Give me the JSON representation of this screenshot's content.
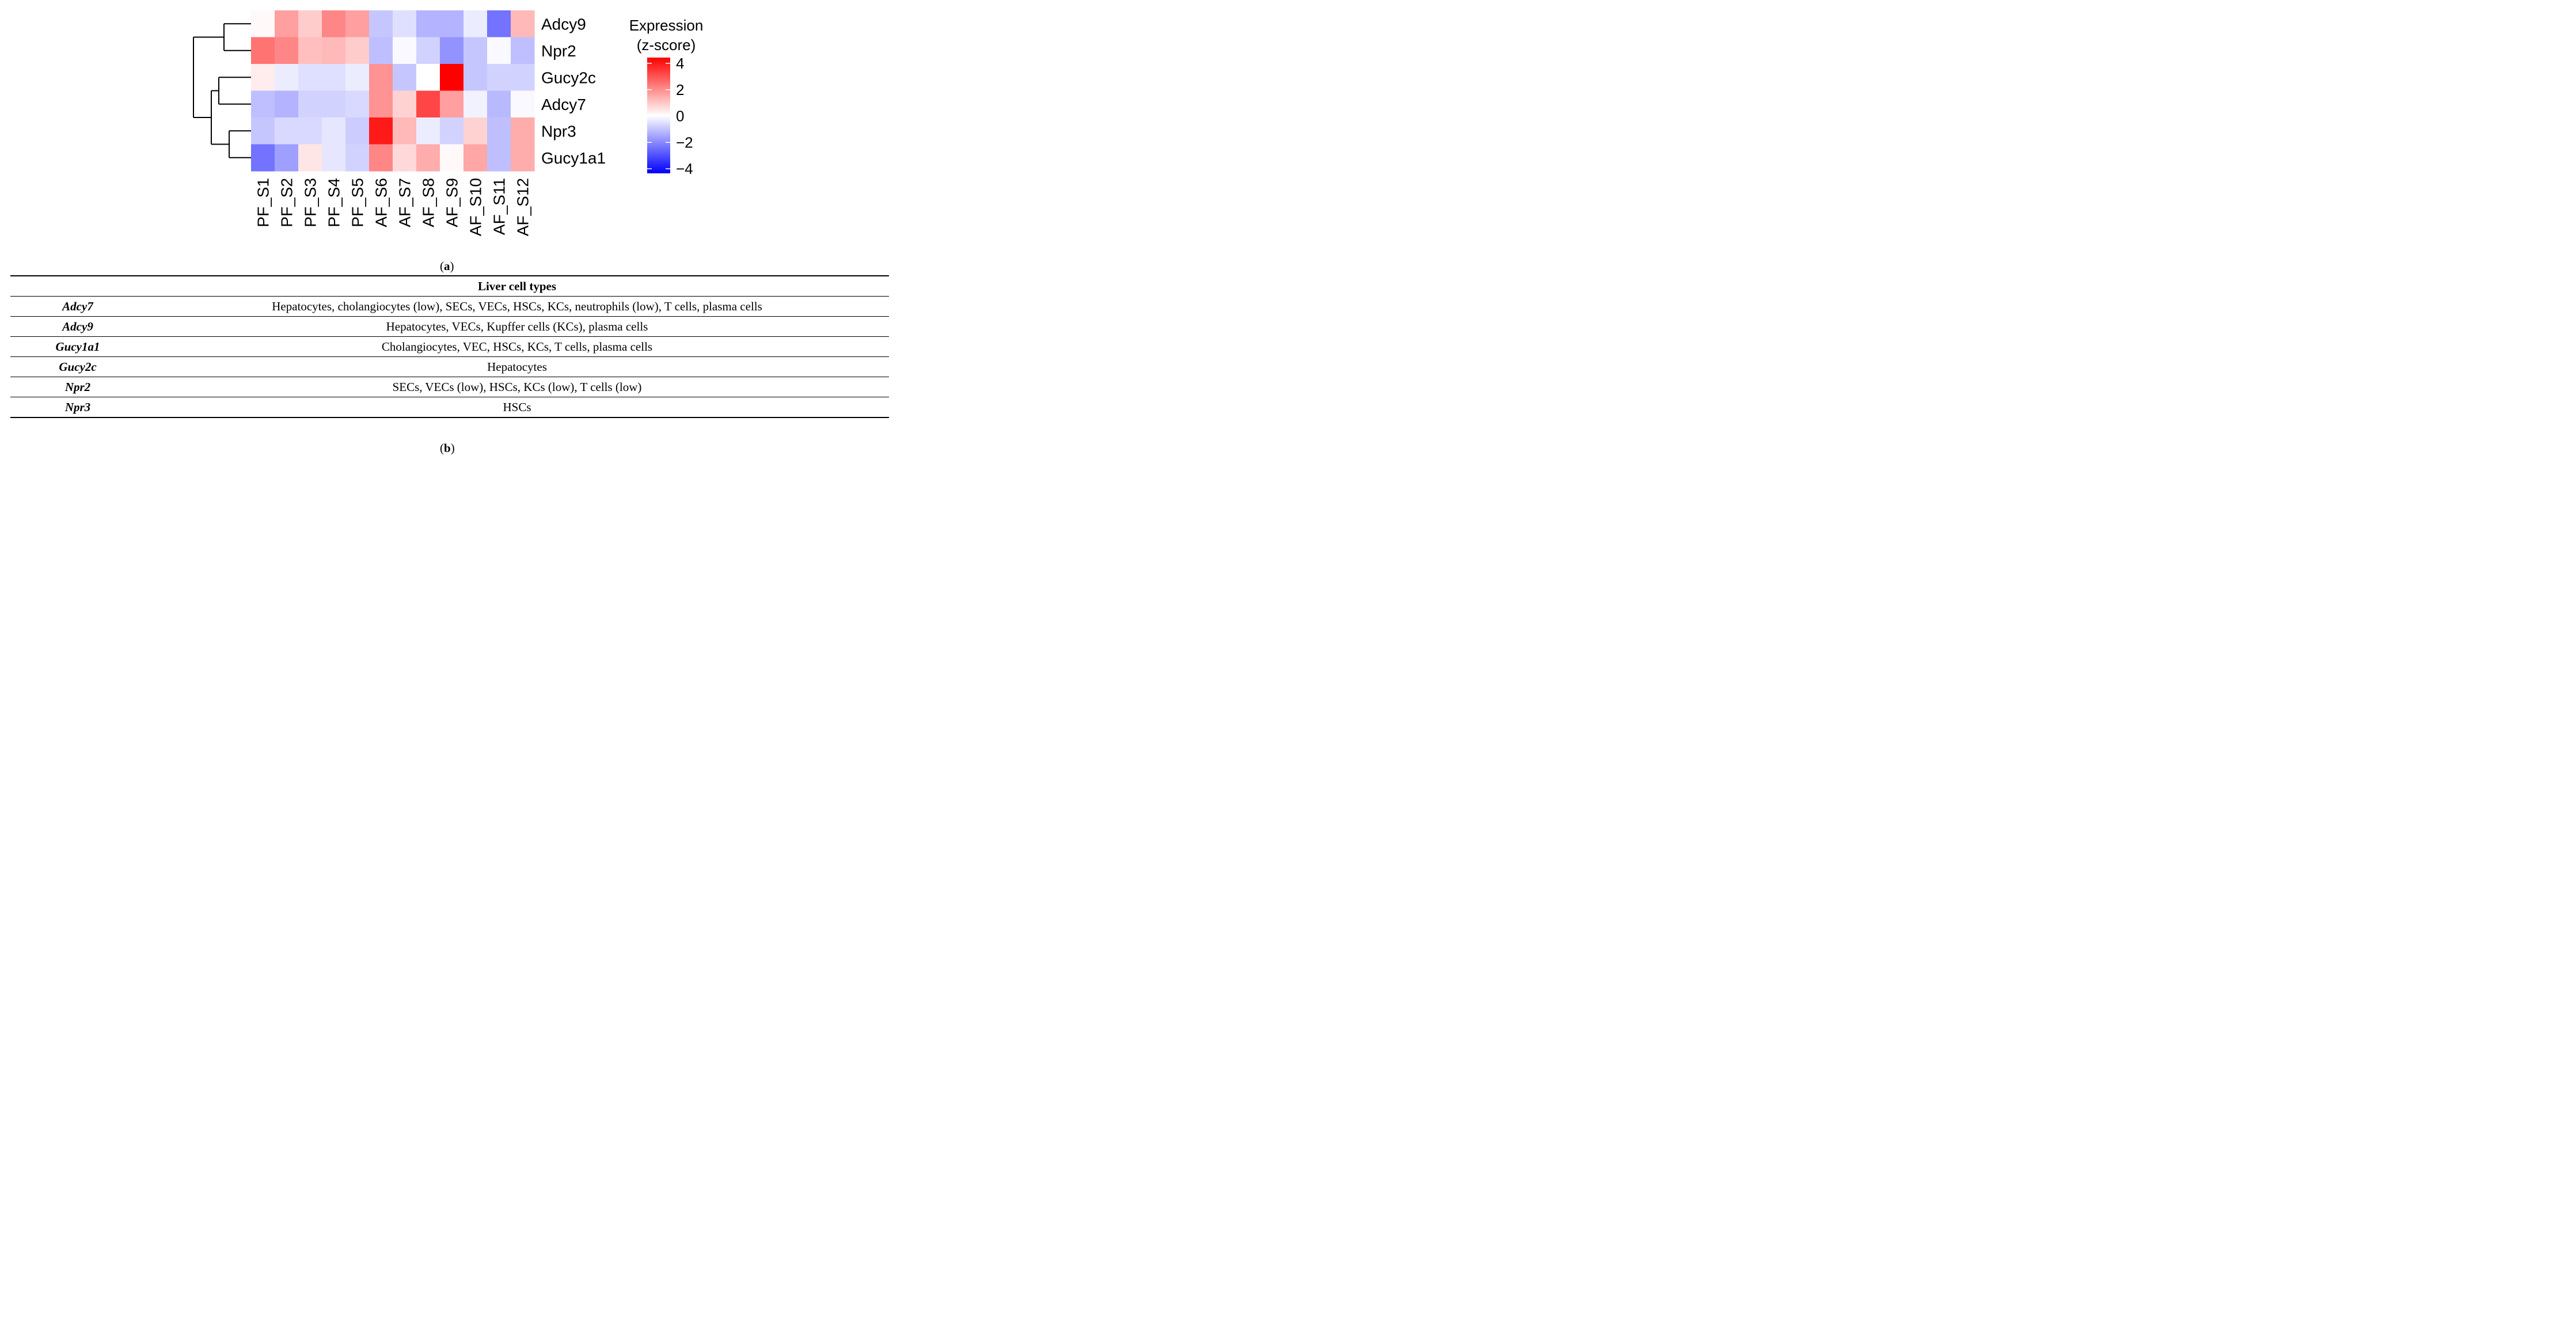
{
  "chart_data": {
    "type": "heatmap",
    "panel_label": "a",
    "columns": [
      "PF_S1",
      "PF_S2",
      "PF_S3",
      "PF_S4",
      "PF_S5",
      "AF_S6",
      "AF_S7",
      "AF_S8",
      "AF_S9",
      "AF_S10",
      "AF_S11",
      "AF_S12"
    ],
    "rows": [
      "Adcy9",
      "Npr2",
      "Gucy2c",
      "Adcy7",
      "Npr3",
      "Gucy1a1"
    ],
    "values": [
      [
        0.1,
        1.5,
        0.8,
        1.9,
        1.5,
        -0.9,
        -0.5,
        -1.2,
        -1.2,
        -0.3,
        -2.2,
        1.1
      ],
      [
        2.2,
        1.9,
        1.0,
        1.1,
        0.8,
        -1.0,
        -0.1,
        -0.7,
        -1.7,
        -0.9,
        -0.1,
        -1.0
      ],
      [
        0.3,
        -0.3,
        -0.5,
        -0.5,
        -0.3,
        1.7,
        -0.9,
        0.0,
        4.2,
        -0.9,
        -0.7,
        -0.7
      ],
      [
        -1.0,
        -1.2,
        -0.7,
        -0.7,
        -0.6,
        1.7,
        0.7,
        2.9,
        1.5,
        -0.2,
        -1.1,
        -0.1
      ],
      [
        -0.9,
        -0.6,
        -0.6,
        -0.4,
        -0.8,
        3.6,
        1.1,
        -0.3,
        -0.7,
        0.7,
        -1.0,
        1.3
      ],
      [
        -2.2,
        -1.5,
        0.4,
        -0.4,
        -0.7,
        1.9,
        0.6,
        1.3,
        0.1,
        1.4,
        -1.0,
        1.3
      ]
    ],
    "legend": {
      "title_line1": "Expression",
      "title_line2": "(z-score)",
      "ticks": [
        4,
        2,
        0,
        -2,
        -4
      ],
      "tick_labels": [
        "4",
        "2",
        "0",
        "−2",
        "−4"
      ],
      "range": [
        -4,
        4
      ],
      "low_color": "#0000ff",
      "mid_color": "#ffffff",
      "high_color": "#ff0000"
    }
  },
  "table": {
    "panel_label": "b",
    "header": "Liver cell types",
    "rows": [
      {
        "gene": "Adcy7",
        "cells": "Hepatocytes, cholangiocytes (low), SECs, VECs, HSCs, KCs, neutrophils (low), T cells, plasma cells"
      },
      {
        "gene": "Adcy9",
        "cells": "Hepatocytes, VECs, Kupffer cells (KCs), plasma cells"
      },
      {
        "gene": "Gucy1a1",
        "cells": "Cholangiocytes, VEC, HSCs, KCs, T cells, plasma cells"
      },
      {
        "gene": "Gucy2c",
        "cells": "Hepatocytes"
      },
      {
        "gene": "Npr2",
        "cells": "SECs, VECs (low), HSCs, KCs (low), T cells (low)"
      },
      {
        "gene": "Npr3",
        "cells": "HSCs"
      }
    ]
  }
}
